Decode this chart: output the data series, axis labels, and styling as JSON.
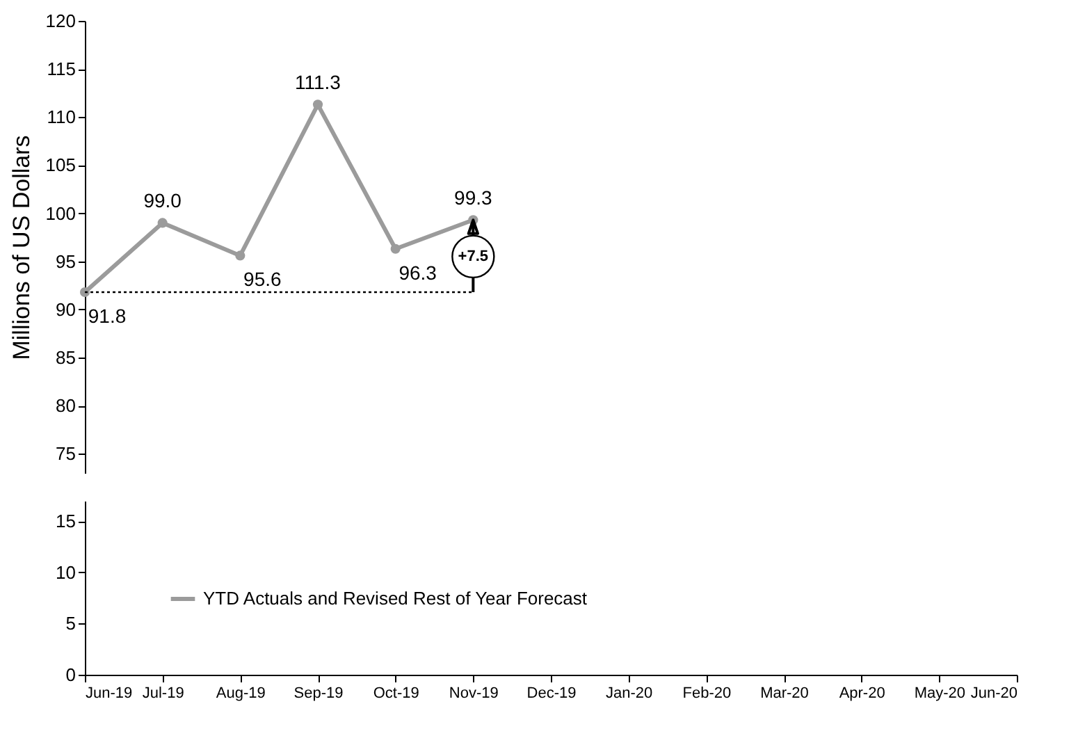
{
  "chart_data": [
    {
      "type": "line",
      "ylabel": "Millions of US Dollars",
      "categories": [
        "Jun-19",
        "Jul-19",
        "Aug-19",
        "Sep-19",
        "Oct-19",
        "Nov-19",
        "Dec-19",
        "Jan-20",
        "Feb-20",
        "Mar-20",
        "Apr-20",
        "May-20",
        "Jun-20"
      ],
      "series": [
        {
          "name": "YTD Actuals and Revised Rest of Year Forecast",
          "color": "#9b9b9b",
          "values": [
            91.8,
            99.0,
            95.6,
            111.3,
            96.3,
            99.3,
            null,
            null,
            null,
            null,
            null,
            null,
            null
          ]
        }
      ],
      "ylim": [
        73,
        120
      ],
      "yticks": [
        75,
        80,
        85,
        90,
        95,
        100,
        105,
        110,
        115,
        120
      ],
      "ref_lines": [
        {
          "axis": "y",
          "value": 91.8,
          "color": "#000000",
          "line_style": "dotted"
        }
      ],
      "annotations": [
        {
          "text": "+7.5",
          "x": "Nov-19",
          "y": 95.5
        }
      ],
      "value_labels": [
        "91.8",
        "99.0",
        "95.6",
        "111.3",
        "96.3",
        "99.3",
        null,
        null,
        null,
        null,
        null,
        null,
        null
      ],
      "marker": "circle",
      "line_style": "solid",
      "legend": "bottom left",
      "tick_labels": "y",
      "grid": false
    },
    {
      "type": "line",
      "categories": [
        "Jun-19",
        "Jul-19",
        "Aug-19",
        "Sep-19",
        "Oct-19",
        "Nov-19",
        "Dec-19",
        "Jan-20",
        "Feb-20",
        "Mar-20",
        "Apr-20",
        "May-20",
        "Jun-20"
      ],
      "ylim": [
        0,
        17
      ],
      "yticks": [
        0,
        5,
        10,
        15
      ],
      "grid": false
    }
  ]
}
